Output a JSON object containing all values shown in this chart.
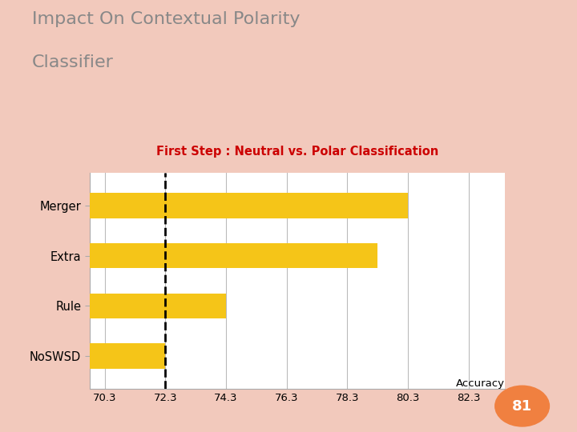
{
  "title_line1": "Impact On Contextual Polarity",
  "title_line2": "Classifier",
  "subtitle": "First Step : Neutral vs. Polar Classification",
  "categories": [
    "NoSWSD",
    "Rule",
    "Extra",
    "Merger"
  ],
  "values": [
    72.3,
    74.3,
    79.3,
    80.3
  ],
  "bar_color": "#F5C518",
  "subtitle_color": "#CC0000",
  "title_color": "#888888",
  "xlabel": "Accuracy",
  "dashed_line_x": 72.3,
  "xlim_min": 69.8,
  "xlim_max": 83.5,
  "xticks": [
    70.3,
    72.3,
    74.3,
    76.3,
    78.3,
    80.3,
    82.3
  ],
  "xtick_labels": [
    "70.3",
    "72.3",
    "74.3",
    "76.3",
    "78.3",
    "80.3",
    "82.3"
  ],
  "background_color": "#FFFFFF",
  "page_bg_color": "#F2C9BC",
  "page_number": "81",
  "page_number_bg": "#F08040",
  "bar_height": 0.5
}
